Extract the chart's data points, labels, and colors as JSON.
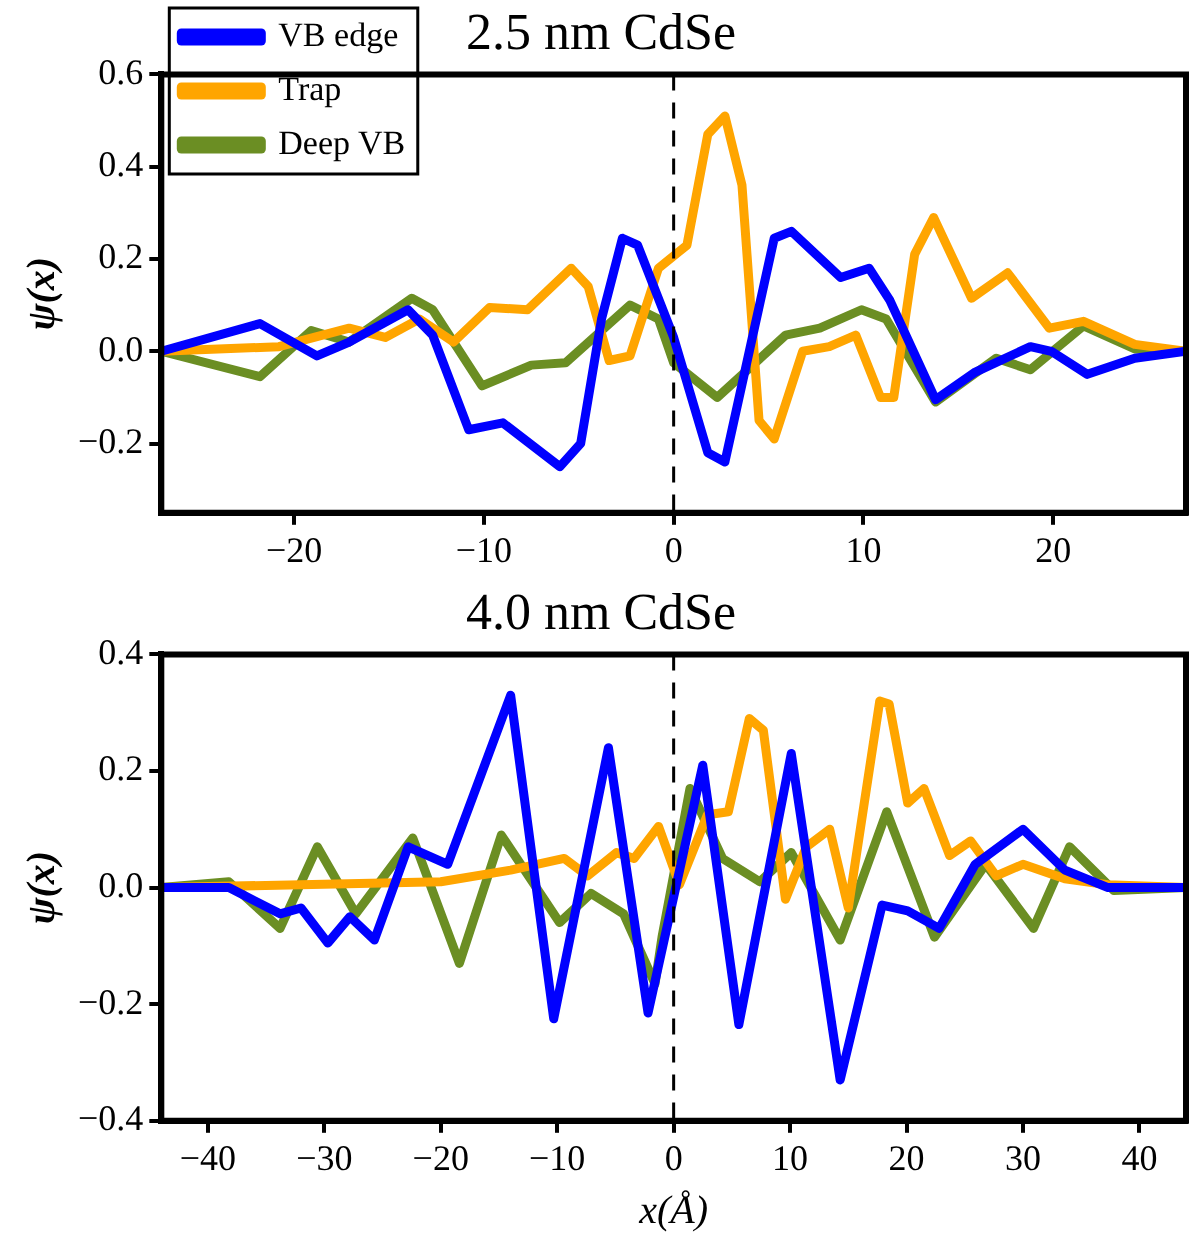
{
  "chart_data": [
    {
      "type": "line",
      "title": "2.5 nm CdSe",
      "ylabel": "ψ(x)",
      "xlim": [
        -27,
        27
      ],
      "ylim": [
        -0.35,
        0.6
      ],
      "xticks": [
        {
          "value": -20,
          "label": "−20"
        },
        {
          "value": -10,
          "label": "−10"
        },
        0,
        10,
        20
      ],
      "yticks": [
        {
          "value": -0.2,
          "label": "−0.2"
        },
        {
          "value": 0,
          "label": "0.0"
        },
        {
          "value": 0.2,
          "label": "0.2"
        },
        {
          "value": 0.4,
          "label": "0.4"
        },
        {
          "value": 0.6,
          "label": "0.6"
        }
      ],
      "grid": false,
      "legend": "top left",
      "marker": "none",
      "line_style": "solid",
      "ref_lines": [
        {
          "axis": "x",
          "value": 0,
          "color": "#000000",
          "line_style": "dashed"
        }
      ],
      "series": [
        {
          "name": "VB edge",
          "color": "#0000ff",
          "x": [
            -27,
            -21.8,
            -18.8,
            -17.1,
            -14,
            -12.7,
            -10.8,
            -9,
            -6,
            -4.9,
            -3.8,
            -2.7,
            -1.9,
            0,
            1.8,
            2.7,
            5.3,
            6.2,
            8.8,
            10.3,
            11.4,
            13.8,
            15.9,
            18.8,
            19.9,
            21.8,
            24.3,
            27
          ],
          "values": [
            0,
            0.06,
            -0.01,
            0.02,
            0.09,
            0.035,
            -0.17,
            -0.155,
            -0.25,
            -0.2,
            0.07,
            0.245,
            0.23,
            0.03,
            -0.22,
            -0.24,
            0.245,
            0.26,
            0.16,
            0.18,
            0.11,
            -0.105,
            -0.045,
            0.01,
            0,
            -0.05,
            -0.015,
            0
          ]
        },
        {
          "name": "Trap",
          "color": "#ffa500",
          "x": [
            -27,
            -20.8,
            -17.1,
            -15.2,
            -13.4,
            -11.6,
            -9.7,
            -7.7,
            -5.4,
            -4.5,
            -3.4,
            -2.3,
            -0.8,
            0.7,
            1.8,
            2.7,
            3.6,
            4.5,
            5.3,
            6.8,
            8.2,
            9.6,
            10.9,
            11.6,
            12.7,
            13.7,
            15.7,
            17.6,
            19.8,
            21.6,
            24.3,
            27
          ],
          "values": [
            0,
            0.01,
            0.05,
            0.03,
            0.07,
            0.02,
            0.095,
            0.09,
            0.18,
            0.14,
            -0.02,
            -0.01,
            0.18,
            0.23,
            0.47,
            0.51,
            0.36,
            -0.15,
            -0.19,
            0,
            0.01,
            0.035,
            -0.1,
            -0.1,
            0.21,
            0.29,
            0.115,
            0.17,
            0.05,
            0.065,
            0.015,
            0
          ]
        },
        {
          "name": "Deep VB",
          "color": "#6b8e23",
          "x": [
            -27,
            -21.8,
            -19.1,
            -17.1,
            -13.8,
            -12.7,
            -10.1,
            -7.5,
            -5.7,
            -2.3,
            -0.8,
            0,
            2.3,
            5.9,
            7.7,
            9.9,
            11.2,
            13.8,
            17,
            18.8,
            21.6,
            24.3,
            27
          ],
          "values": [
            0,
            -0.055,
            0.045,
            0.02,
            0.115,
            0.09,
            -0.075,
            -0.03,
            -0.025,
            0.1,
            0.07,
            -0.025,
            -0.1,
            0.035,
            0.05,
            0.09,
            0.07,
            -0.11,
            -0.015,
            -0.04,
            0.055,
            0.005,
            0
          ]
        }
      ]
    },
    {
      "type": "line",
      "title": "4.0 nm CdSe",
      "xlabel": "x(Å)",
      "ylabel": "ψ(x)",
      "xlim": [
        -44,
        44
      ],
      "ylim": [
        -0.4,
        0.4
      ],
      "xticks": [
        {
          "value": -40,
          "label": "−40"
        },
        {
          "value": -30,
          "label": "−30"
        },
        {
          "value": -20,
          "label": "−20"
        },
        {
          "value": -10,
          "label": "−10"
        },
        0,
        10,
        20,
        30,
        40
      ],
      "yticks": [
        {
          "value": -0.4,
          "label": "−0.4"
        },
        {
          "value": -0.2,
          "label": "−0.2"
        },
        {
          "value": 0,
          "label": "0.0"
        },
        {
          "value": 0.2,
          "label": "0.2"
        },
        {
          "value": 0.4,
          "label": "0.4"
        }
      ],
      "grid": false,
      "legend": false,
      "marker": "none",
      "line_style": "solid",
      "ref_lines": [
        {
          "axis": "x",
          "value": 0,
          "color": "#000000",
          "line_style": "dashed"
        }
      ],
      "series": [
        {
          "color": "#0000ff",
          "x": [
            -44,
            -38.2,
            -33.8,
            -32,
            -29.7,
            -27.8,
            -25.7,
            -22.8,
            -19.4,
            -14,
            -10.3,
            -5.6,
            -2.2,
            2.5,
            5.6,
            10.1,
            14.3,
            17.9,
            20.1,
            22.8,
            25.9,
            30,
            33.6,
            37.3,
            44
          ],
          "values": [
            0,
            0,
            -0.045,
            -0.035,
            -0.095,
            -0.05,
            -0.09,
            0.07,
            0.04,
            0.33,
            -0.225,
            0.24,
            -0.215,
            0.21,
            -0.235,
            0.23,
            -0.33,
            -0.03,
            -0.04,
            -0.07,
            0.04,
            0.1,
            0.03,
            0,
            0
          ]
        },
        {
          "color": "#ffa500",
          "x": [
            -44,
            -20,
            -14,
            -9.4,
            -7.4,
            -4.9,
            -3.4,
            -1.3,
            0.5,
            2.9,
            4.7,
            6.5,
            7.7,
            9.6,
            11.4,
            13.4,
            15,
            17.7,
            18.5,
            20.1,
            21.5,
            23.7,
            25.5,
            27.7,
            30,
            33.6,
            37.3,
            44
          ],
          "values": [
            0,
            0.01,
            0.03,
            0.05,
            0.02,
            0.06,
            0.05,
            0.105,
            0.005,
            0.125,
            0.13,
            0.29,
            0.27,
            -0.02,
            0.07,
            0.1,
            -0.035,
            0.32,
            0.315,
            0.145,
            0.17,
            0.055,
            0.08,
            0.02,
            0.04,
            0.015,
            0.005,
            0
          ]
        },
        {
          "color": "#6b8e23",
          "x": [
            -44,
            -38.2,
            -33.8,
            -30.6,
            -27.3,
            -22.4,
            -18.4,
            -14.8,
            -9.8,
            -7.1,
            -4.3,
            -1.6,
            -1,
            1.4,
            4.2,
            7.4,
            10.1,
            14.3,
            18.3,
            22.4,
            26.8,
            30.9,
            34,
            37.8,
            44
          ],
          "values": [
            0,
            0.01,
            -0.07,
            0.07,
            -0.045,
            0.085,
            -0.13,
            0.09,
            -0.06,
            -0.01,
            -0.045,
            -0.165,
            -0.085,
            0.17,
            0.05,
            0.01,
            0.06,
            -0.09,
            0.13,
            -0.085,
            0.04,
            -0.07,
            0.07,
            -0.005,
            0
          ]
        }
      ]
    }
  ]
}
